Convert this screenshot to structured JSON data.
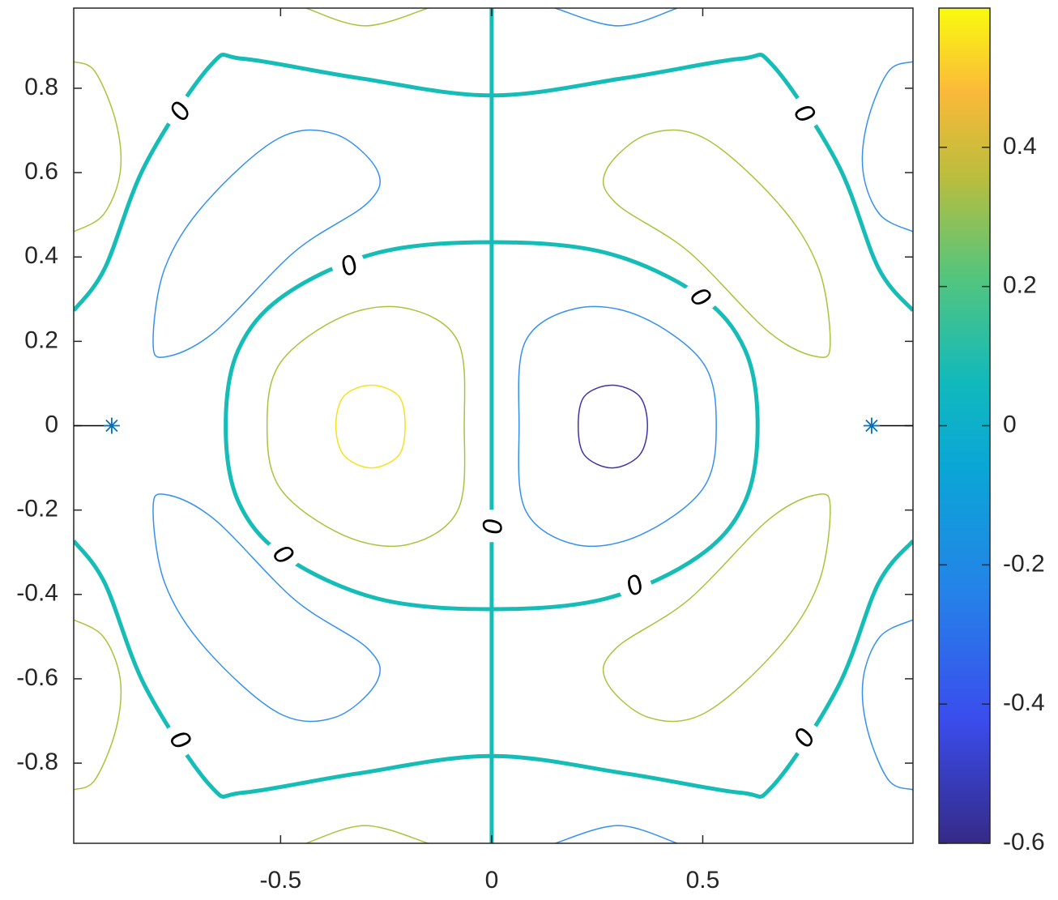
{
  "chart_data": {
    "type": "contour",
    "xlim": [
      -0.99,
      0.998
    ],
    "ylim": [
      -0.99,
      0.99
    ],
    "xticks": [
      -0.5,
      0,
      0.5
    ],
    "yticks": [
      -0.8,
      -0.6,
      -0.4,
      -0.2,
      0,
      0.2,
      0.4,
      0.6,
      0.8
    ],
    "colorbar": {
      "clim": [
        -0.6,
        0.6
      ],
      "ticks": [
        -0.6,
        -0.4,
        -0.2,
        0,
        0.2,
        0.4
      ]
    },
    "contours": [
      {
        "level": 0,
        "color": "#16bdb6",
        "labeled": true,
        "lines": [
          {
            "x": [
              0,
              0
            ],
            "y": [
              0.99,
              -0.99
            ],
            "closed": false
          },
          {
            "x": [
              0.63,
              0.6,
              0.49,
              0.27,
              0,
              -0.27,
              -0.49,
              -0.6,
              -0.63,
              -0.6,
              -0.49,
              -0.27,
              0,
              0.27,
              0.49,
              0.6
            ],
            "y": [
              0,
              0.18,
              0.31,
              0.41,
              0.435,
              0.41,
              0.31,
              0.18,
              0,
              -0.18,
              -0.31,
              -0.41,
              -0.435,
              -0.41,
              -0.31,
              -0.18
            ],
            "closed": true
          },
          {
            "x": [
              -0.99,
              -0.916,
              -0.82,
              -0.666,
              -0.589,
              -0.32,
              0,
              0.32,
              0.589,
              0.666,
              0.82,
              0.916,
              0.998
            ],
            "y": [
              0.273,
              0.374,
              0.62,
              0.854,
              0.87,
              0.825,
              0.783,
              0.825,
              0.87,
              0.854,
              0.62,
              0.374,
              0.273
            ],
            "closed": false
          },
          {
            "x": [
              -0.99,
              -0.916,
              -0.82,
              -0.666,
              -0.589,
              -0.32,
              0,
              0.32,
              0.589,
              0.666,
              0.82,
              0.916,
              0.998
            ],
            "y": [
              -0.273,
              -0.374,
              -0.62,
              -0.854,
              -0.87,
              -0.825,
              -0.783,
              -0.825,
              -0.87,
              -0.854,
              -0.62,
              -0.374,
              -0.273
            ],
            "closed": false
          }
        ]
      },
      {
        "level": 0.25,
        "color": "#a5c63b",
        "labeled": false,
        "lines": [
          {
            "x": [
              -0.065,
              -0.08,
              -0.2,
              -0.35,
              -0.5,
              -0.532,
              -0.5,
              -0.35,
              -0.2,
              -0.08
            ],
            "y": [
              0,
              0.2,
              0.278,
              0.26,
              0.15,
              0,
              -0.15,
              -0.26,
              -0.282,
              -0.2
            ],
            "closed": true
          },
          {
            "x": [
              0.271,
              0.37,
              0.505,
              0.678,
              0.774,
              0.802,
              0.774,
              0.658,
              0.466,
              0.294
            ],
            "y": [
              0.605,
              0.691,
              0.681,
              0.528,
              0.374,
              0.2,
              0.163,
              0.221,
              0.413,
              0.528
            ],
            "closed": true
          },
          {
            "x": [
              0.271,
              0.37,
              0.505,
              0.678,
              0.774,
              0.802,
              0.774,
              0.658,
              0.466,
              0.294
            ],
            "y": [
              -0.605,
              -0.691,
              -0.681,
              -0.528,
              -0.374,
              -0.2,
              -0.163,
              -0.221,
              -0.413,
              -0.528
            ],
            "closed": true
          },
          {
            "x": [
              -0.99,
              -0.94,
              -0.89,
              -0.88,
              -0.92,
              -0.99
            ],
            "y": [
              0.863,
              0.84,
              0.72,
              0.6,
              0.5,
              0.46
            ],
            "closed": false
          },
          {
            "x": [
              -0.99,
              -0.94,
              -0.89,
              -0.88,
              -0.92,
              -0.99
            ],
            "y": [
              -0.863,
              -0.84,
              -0.72,
              -0.6,
              -0.5,
              -0.46
            ],
            "closed": false
          },
          {
            "x": [
              -0.44,
              -0.3,
              -0.15
            ],
            "y": [
              0.99,
              0.948,
              0.99
            ],
            "closed": false
          },
          {
            "x": [
              -0.44,
              -0.3,
              -0.15
            ],
            "y": [
              -0.99,
              -0.948,
              -0.99
            ],
            "closed": false
          }
        ]
      },
      {
        "level": -0.25,
        "color": "#3591f0",
        "labeled": false,
        "lines": [
          {
            "x": [
              0.065,
              0.08,
              0.2,
              0.35,
              0.5,
              0.532,
              0.5,
              0.35,
              0.2,
              0.08
            ],
            "y": [
              0,
              0.2,
              0.278,
              0.26,
              0.15,
              0,
              -0.15,
              -0.26,
              -0.282,
              -0.2
            ],
            "closed": true
          },
          {
            "x": [
              -0.271,
              -0.37,
              -0.505,
              -0.678,
              -0.774,
              -0.802,
              -0.774,
              -0.658,
              -0.466,
              -0.294
            ],
            "y": [
              0.605,
              0.691,
              0.681,
              0.528,
              0.374,
              0.2,
              0.163,
              0.221,
              0.413,
              0.528
            ],
            "closed": true
          },
          {
            "x": [
              -0.271,
              -0.37,
              -0.505,
              -0.678,
              -0.774,
              -0.802,
              -0.774,
              -0.658,
              -0.466,
              -0.294
            ],
            "y": [
              -0.605,
              -0.691,
              -0.681,
              -0.528,
              -0.374,
              -0.2,
              -0.163,
              -0.221,
              -0.413,
              -0.528
            ],
            "closed": true
          },
          {
            "x": [
              0.998,
              0.94,
              0.89,
              0.88,
              0.92,
              0.998
            ],
            "y": [
              0.863,
              0.84,
              0.72,
              0.6,
              0.5,
              0.46
            ],
            "closed": false
          },
          {
            "x": [
              0.998,
              0.94,
              0.89,
              0.88,
              0.92,
              0.998
            ],
            "y": [
              -0.863,
              -0.84,
              -0.72,
              -0.6,
              -0.5,
              -0.46
            ],
            "closed": false
          },
          {
            "x": [
              0.15,
              0.3,
              0.44
            ],
            "y": [
              0.99,
              0.948,
              0.99
            ],
            "closed": false
          },
          {
            "x": [
              0.15,
              0.3,
              0.44
            ],
            "y": [
              -0.99,
              -0.948,
              -0.99
            ],
            "closed": false
          }
        ]
      },
      {
        "level": 0.5,
        "color": "#f5e219",
        "labeled": false,
        "lines": [
          {
            "x": [
              -0.205,
              -0.22,
              -0.285,
              -0.35,
              -0.369,
              -0.35,
              -0.285,
              -0.22
            ],
            "y": [
              0,
              0.07,
              0.096,
              0.07,
              0,
              -0.07,
              -0.1,
              -0.07
            ],
            "closed": true
          }
        ]
      },
      {
        "level": -0.5,
        "color": "#3e33a6",
        "labeled": false,
        "lines": [
          {
            "x": [
              0.205,
              0.22,
              0.285,
              0.35,
              0.369,
              0.35,
              0.285,
              0.22
            ],
            "y": [
              0,
              0.07,
              0.096,
              0.07,
              0,
              -0.07,
              -0.1,
              -0.07
            ],
            "closed": true
          }
        ]
      }
    ],
    "markers": {
      "x": [
        -0.9,
        0.9
      ],
      "y": [
        0,
        0
      ],
      "color": "#0072bd"
    }
  }
}
